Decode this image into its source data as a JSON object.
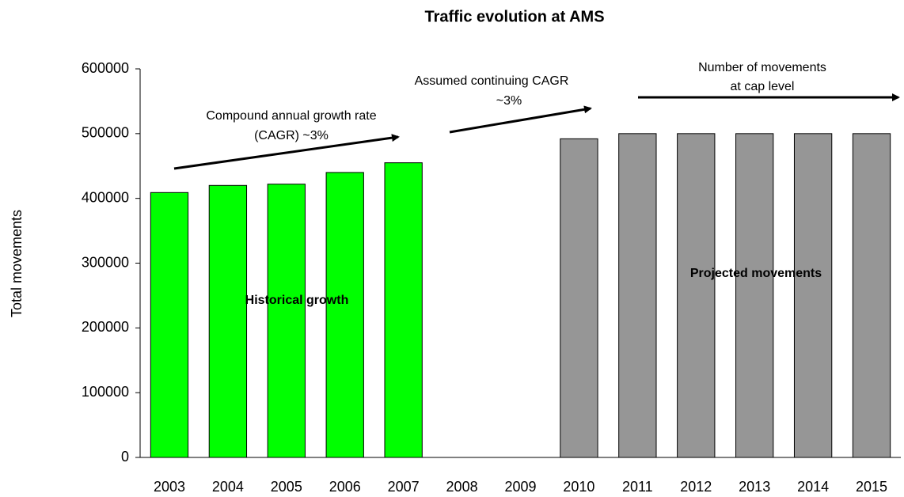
{
  "chart_data": {
    "type": "bar",
    "title": "Traffic evolution at AMS",
    "y_label": "Total movements",
    "categories": [
      "2003",
      "2004",
      "2005",
      "2006",
      "2007",
      "2008",
      "2009",
      "2010",
      "2011",
      "2012",
      "2013",
      "2014",
      "2015"
    ],
    "series": [
      {
        "name": "Historical growth",
        "color": "#00ff00",
        "values": [
          409000,
          420000,
          422000,
          440000,
          455000,
          null,
          null,
          null,
          null,
          null,
          null,
          null,
          null
        ]
      },
      {
        "name": "Projected movements",
        "color": "#969696",
        "values": [
          null,
          null,
          null,
          null,
          null,
          null,
          null,
          492000,
          500000,
          500000,
          500000,
          500000,
          500000
        ]
      }
    ],
    "ylim": [
      0,
      600000
    ],
    "yticks": [
      0,
      100000,
      200000,
      300000,
      400000,
      500000,
      600000
    ],
    "grid": false,
    "annotations": [
      {
        "lines": [
          "Compound annual growth rate",
          "(CAGR) ~3%"
        ]
      },
      {
        "lines": [
          "Assumed continuing CAGR",
          "~3%"
        ]
      },
      {
        "lines": [
          "Number of movements",
          "at cap level"
        ]
      }
    ]
  }
}
